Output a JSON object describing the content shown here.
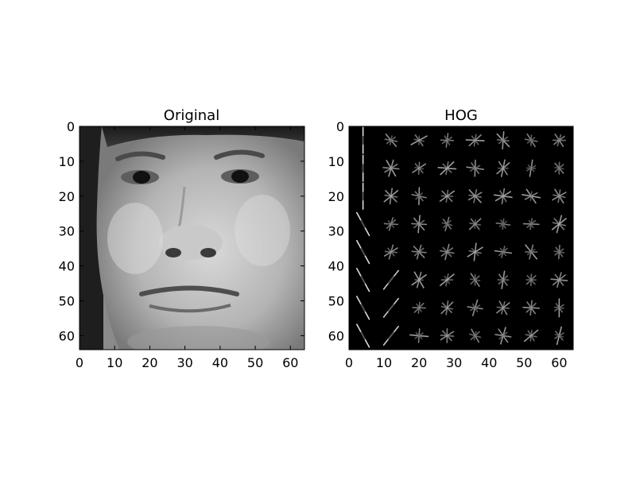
{
  "figure": {
    "panels": [
      {
        "id": "original",
        "title": "Original",
        "x_ticks": [
          "0",
          "10",
          "20",
          "30",
          "40",
          "50",
          "60"
        ],
        "y_ticks": [
          "0",
          "10",
          "20",
          "30",
          "40",
          "50",
          "60"
        ],
        "image_content": "grayscale face photograph"
      },
      {
        "id": "hog",
        "title": "HOG",
        "x_ticks": [
          "0",
          "10",
          "20",
          "30",
          "40",
          "50",
          "60"
        ],
        "y_ticks": [
          "0",
          "10",
          "20",
          "30",
          "40",
          "50",
          "60"
        ],
        "image_content": "histogram of oriented gradients visualization, 8x8 cell grid on black"
      }
    ],
    "colors": {
      "background": "#ffffff",
      "axes_frame": "#000000",
      "hog_background": "#000000",
      "hog_strokes": "#d8d8d8"
    }
  }
}
